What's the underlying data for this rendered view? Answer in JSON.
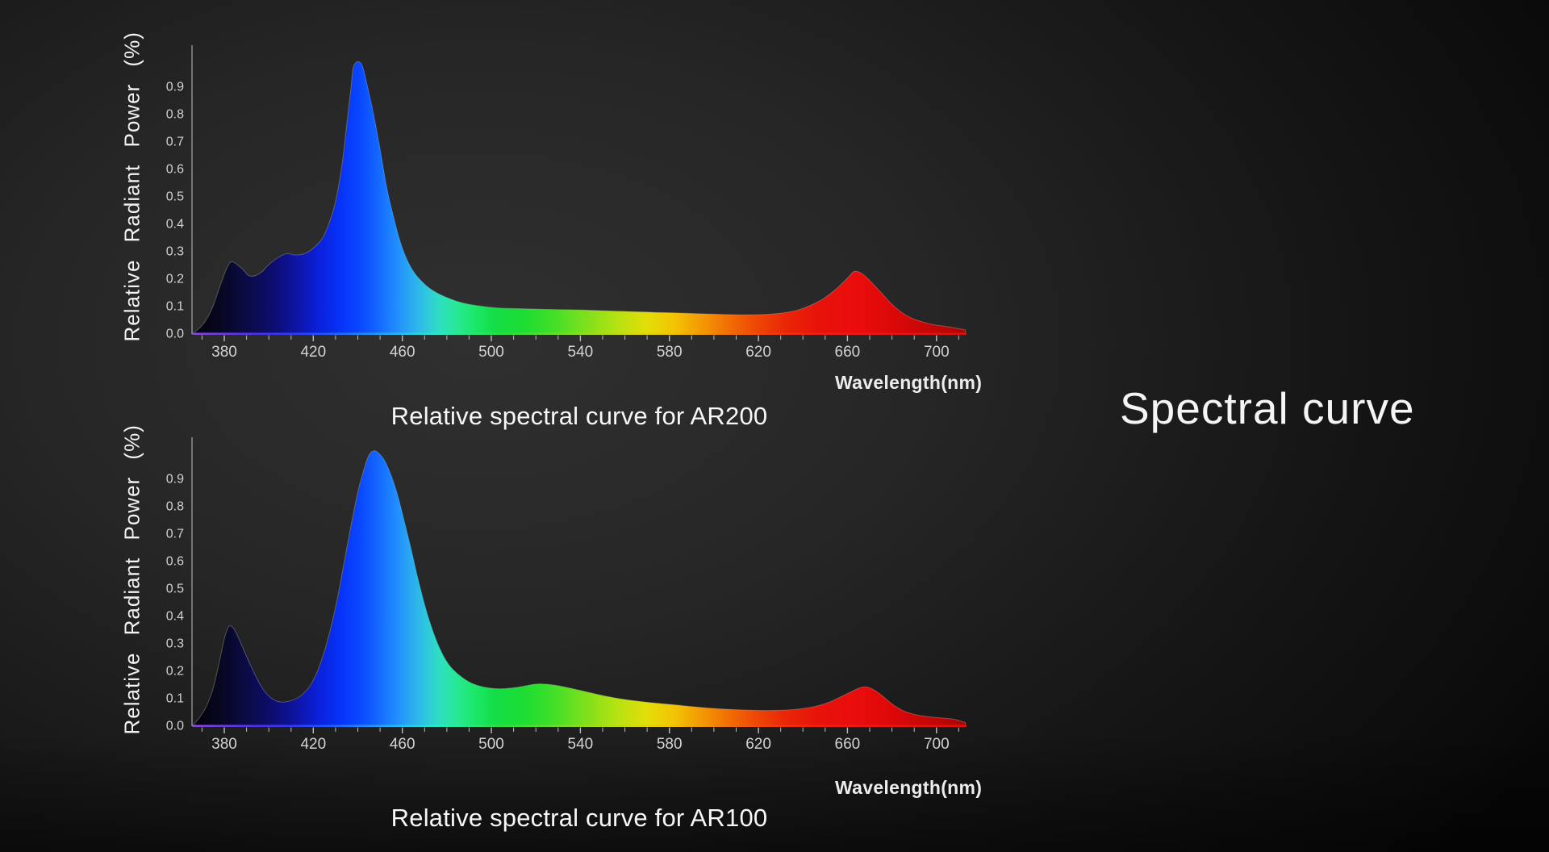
{
  "side_title": {
    "text": "Spectral curve"
  },
  "colors": {
    "axis": "#a8a8a8",
    "tick": "#bdbdbd",
    "tick_label": "#d2d2d2",
    "heading_text": "#f5f5f5",
    "area_outline": "rgba(175,175,175,0.4)",
    "spectrum_fill": [
      [
        366,
        "#020208"
      ],
      [
        378,
        "#070722"
      ],
      [
        390,
        "#0b0b46"
      ],
      [
        402,
        "#0d0d70"
      ],
      [
        412,
        "#0e14a2"
      ],
      [
        422,
        "#0a20da"
      ],
      [
        432,
        "#0732f8"
      ],
      [
        440,
        "#0845ff"
      ],
      [
        448,
        "#1263ff"
      ],
      [
        456,
        "#1e87ff"
      ],
      [
        463,
        "#2aa6f2"
      ],
      [
        470,
        "#2fc4e0"
      ],
      [
        477,
        "#2ee0c0"
      ],
      [
        484,
        "#28e896"
      ],
      [
        492,
        "#1ce86a"
      ],
      [
        502,
        "#14dd46"
      ],
      [
        515,
        "#1edd32"
      ],
      [
        528,
        "#42df28"
      ],
      [
        542,
        "#7ce01c"
      ],
      [
        556,
        "#b4e212"
      ],
      [
        570,
        "#e4dd08"
      ],
      [
        582,
        "#f2c404"
      ],
      [
        594,
        "#f49a04"
      ],
      [
        606,
        "#f27004"
      ],
      [
        618,
        "#ee4a06"
      ],
      [
        632,
        "#ea2608"
      ],
      [
        648,
        "#e8120a"
      ],
      [
        665,
        "#ea0c0c"
      ],
      [
        682,
        "#d90808"
      ],
      [
        700,
        "#c00606"
      ],
      [
        713,
        "#a80505"
      ]
    ],
    "spectrum_line": [
      [
        366,
        "#8a46d8"
      ],
      [
        380,
        "#6a3ae0"
      ],
      [
        395,
        "#4a30e8"
      ],
      [
        410,
        "#3038f0"
      ],
      [
        425,
        "#2055ff"
      ],
      [
        445,
        "#2090ff"
      ],
      [
        460,
        "#28c0f0"
      ],
      [
        475,
        "#2ae8cc"
      ],
      [
        490,
        "#28e87a"
      ],
      [
        505,
        "#2cdc3c"
      ],
      [
        525,
        "#60dc28"
      ],
      [
        545,
        "#9cdc1c"
      ],
      [
        565,
        "#d8d810"
      ],
      [
        580,
        "#f0c408"
      ],
      [
        595,
        "#f09808"
      ],
      [
        610,
        "#f06408"
      ],
      [
        625,
        "#f03c0c"
      ],
      [
        645,
        "#ee2012"
      ],
      [
        670,
        "#ec1616"
      ],
      [
        695,
        "#e01212"
      ],
      [
        713,
        "#d81010"
      ]
    ]
  },
  "chart_data": [
    {
      "type": "area",
      "title": "Relative spectral curve for AR200",
      "xlabel": "Wavelength(nm)",
      "ylabel": "Relative Radiant Power (%)",
      "xlim": [
        365.5,
        713.5
      ],
      "ylim": [
        0,
        1.05
      ],
      "x_ticks": [
        380,
        420,
        460,
        500,
        540,
        580,
        620,
        660,
        700
      ],
      "y_ticks": [
        "0.9",
        "0.8",
        "0.7",
        "0.6",
        "0.5",
        "0.4",
        "0.3",
        "0.2",
        "0.1",
        "0.0"
      ],
      "x_minor": {
        "start": 370,
        "end": 710,
        "step": 10
      },
      "grid": false,
      "legend": "none",
      "points": [
        [
          366,
          0
        ],
        [
          369,
          0.02
        ],
        [
          372,
          0.05
        ],
        [
          375,
          0.1
        ],
        [
          378,
          0.17
        ],
        [
          381,
          0.235
        ],
        [
          383,
          0.26
        ],
        [
          385,
          0.255
        ],
        [
          388,
          0.235
        ],
        [
          391,
          0.21
        ],
        [
          394,
          0.21
        ],
        [
          397,
          0.225
        ],
        [
          400,
          0.25
        ],
        [
          404,
          0.275
        ],
        [
          408,
          0.29
        ],
        [
          412,
          0.285
        ],
        [
          416,
          0.29
        ],
        [
          420,
          0.31
        ],
        [
          424,
          0.345
        ],
        [
          427,
          0.4
        ],
        [
          430,
          0.48
        ],
        [
          433,
          0.62
        ],
        [
          435,
          0.76
        ],
        [
          437,
          0.9
        ],
        [
          438,
          0.97
        ],
        [
          440,
          0.99
        ],
        [
          442,
          0.975
        ],
        [
          444,
          0.91
        ],
        [
          447,
          0.8
        ],
        [
          450,
          0.67
        ],
        [
          453,
          0.53
        ],
        [
          456,
          0.425
        ],
        [
          459,
          0.335
        ],
        [
          462,
          0.27
        ],
        [
          465,
          0.225
        ],
        [
          468,
          0.195
        ],
        [
          472,
          0.165
        ],
        [
          476,
          0.145
        ],
        [
          480,
          0.13
        ],
        [
          485,
          0.115
        ],
        [
          490,
          0.105
        ],
        [
          496,
          0.098
        ],
        [
          503,
          0.092
        ],
        [
          510,
          0.09
        ],
        [
          520,
          0.088
        ],
        [
          530,
          0.086
        ],
        [
          540,
          0.085
        ],
        [
          550,
          0.082
        ],
        [
          558,
          0.08
        ],
        [
          566,
          0.078
        ],
        [
          574,
          0.076
        ],
        [
          582,
          0.074
        ],
        [
          590,
          0.072
        ],
        [
          598,
          0.07
        ],
        [
          606,
          0.068
        ],
        [
          614,
          0.067
        ],
        [
          622,
          0.068
        ],
        [
          630,
          0.073
        ],
        [
          637,
          0.083
        ],
        [
          643,
          0.1
        ],
        [
          649,
          0.125
        ],
        [
          654,
          0.155
        ],
        [
          658,
          0.185
        ],
        [
          661,
          0.21
        ],
        [
          663,
          0.225
        ],
        [
          666,
          0.22
        ],
        [
          669,
          0.2
        ],
        [
          672,
          0.175
        ],
        [
          676,
          0.14
        ],
        [
          680,
          0.105
        ],
        [
          684,
          0.078
        ],
        [
          688,
          0.058
        ],
        [
          693,
          0.043
        ],
        [
          698,
          0.032
        ],
        [
          704,
          0.025
        ],
        [
          709,
          0.018
        ],
        [
          713,
          0.012
        ]
      ]
    },
    {
      "type": "area",
      "title": "Relative spectral curve for AR100",
      "xlabel": "Wavelength(nm)",
      "ylabel": "Relative Radiant Power (%)",
      "xlim": [
        365.5,
        713.5
      ],
      "ylim": [
        0,
        1.05
      ],
      "x_ticks": [
        380,
        420,
        460,
        500,
        540,
        580,
        620,
        660,
        700
      ],
      "y_ticks": [
        "0.9",
        "0.8",
        "0.7",
        "0.6",
        "0.5",
        "0.4",
        "0.3",
        "0.2",
        "0.1",
        "0.0"
      ],
      "x_minor": {
        "start": 370,
        "end": 710,
        "step": 10
      },
      "grid": false,
      "legend": "none",
      "points": [
        [
          366,
          0
        ],
        [
          369,
          0.03
        ],
        [
          372,
          0.07
        ],
        [
          375,
          0.135
        ],
        [
          378,
          0.24
        ],
        [
          380,
          0.315
        ],
        [
          382,
          0.36
        ],
        [
          384,
          0.355
        ],
        [
          386,
          0.325
        ],
        [
          389,
          0.27
        ],
        [
          392,
          0.215
        ],
        [
          395,
          0.165
        ],
        [
          398,
          0.125
        ],
        [
          401,
          0.1
        ],
        [
          404,
          0.087
        ],
        [
          407,
          0.085
        ],
        [
          410,
          0.09
        ],
        [
          413,
          0.1
        ],
        [
          416,
          0.12
        ],
        [
          419,
          0.15
        ],
        [
          422,
          0.2
        ],
        [
          425,
          0.27
        ],
        [
          428,
          0.36
        ],
        [
          431,
          0.47
        ],
        [
          434,
          0.6
        ],
        [
          437,
          0.73
        ],
        [
          440,
          0.85
        ],
        [
          443,
          0.94
        ],
        [
          445,
          0.985
        ],
        [
          447,
          1.0
        ],
        [
          449,
          0.995
        ],
        [
          452,
          0.965
        ],
        [
          455,
          0.91
        ],
        [
          458,
          0.835
        ],
        [
          461,
          0.74
        ],
        [
          464,
          0.64
        ],
        [
          467,
          0.535
        ],
        [
          470,
          0.44
        ],
        [
          473,
          0.36
        ],
        [
          476,
          0.295
        ],
        [
          479,
          0.245
        ],
        [
          482,
          0.21
        ],
        [
          486,
          0.18
        ],
        [
          490,
          0.158
        ],
        [
          494,
          0.145
        ],
        [
          499,
          0.136
        ],
        [
          504,
          0.133
        ],
        [
          509,
          0.136
        ],
        [
          514,
          0.142
        ],
        [
          519,
          0.149
        ],
        [
          523,
          0.151
        ],
        [
          528,
          0.147
        ],
        [
          534,
          0.138
        ],
        [
          540,
          0.127
        ],
        [
          547,
          0.114
        ],
        [
          554,
          0.102
        ],
        [
          561,
          0.093
        ],
        [
          568,
          0.086
        ],
        [
          575,
          0.08
        ],
        [
          582,
          0.075
        ],
        [
          589,
          0.069
        ],
        [
          596,
          0.064
        ],
        [
          603,
          0.06
        ],
        [
          610,
          0.057
        ],
        [
          617,
          0.055
        ],
        [
          624,
          0.054
        ],
        [
          631,
          0.055
        ],
        [
          638,
          0.059
        ],
        [
          645,
          0.068
        ],
        [
          651,
          0.082
        ],
        [
          656,
          0.1
        ],
        [
          661,
          0.12
        ],
        [
          665,
          0.135
        ],
        [
          668,
          0.14
        ],
        [
          671,
          0.133
        ],
        [
          674,
          0.118
        ],
        [
          677,
          0.098
        ],
        [
          680,
          0.078
        ],
        [
          683,
          0.062
        ],
        [
          686,
          0.05
        ],
        [
          690,
          0.04
        ],
        [
          694,
          0.034
        ],
        [
          699,
          0.029
        ],
        [
          704,
          0.026
        ],
        [
          708,
          0.022
        ],
        [
          711,
          0.015
        ],
        [
          713,
          0.01
        ]
      ]
    }
  ]
}
